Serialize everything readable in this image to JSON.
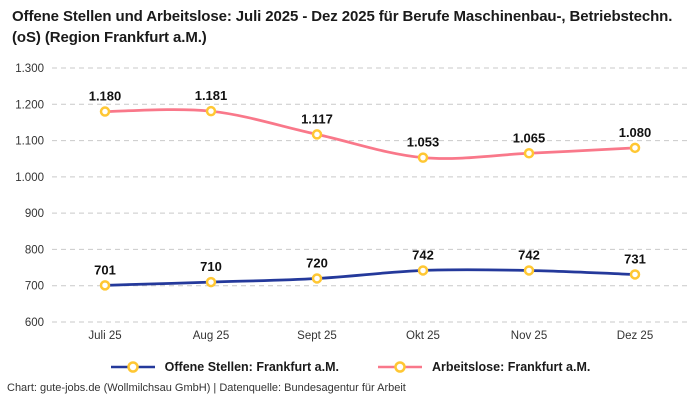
{
  "title": "Offene Stellen und Arbeitslose: Juli 2025 - Dez 2025 für Berufe Maschinenbau-, Betriebstechn.(oS) (Region Frankfurt a.M.)",
  "footer": "Chart: gute-jobs.de (Wollmilchsau GmbH) | Datenquelle: Bundesagentur für Arbeit",
  "colors": {
    "background": "#ffffff",
    "title_text": "#1a1a1a",
    "axis_text": "#333333",
    "data_label_text": "#111111",
    "grid": "#c9c9c9",
    "marker_stroke": "#ffc733",
    "marker_fill": "#ffffff"
  },
  "chart_data": {
    "type": "line",
    "title": "Offene Stellen und Arbeitslose: Juli 2025 - Dez 2025 für Berufe Maschinenbau-, Betriebstechn.(oS) (Region Frankfurt a.M.)",
    "categories": [
      "Juli 25",
      "Aug 25",
      "Sept 25",
      "Okt 25",
      "Nov 25",
      "Dez 25"
    ],
    "series": [
      {
        "name": "Offene Stellen: Frankfurt a.M.",
        "values": [
          701,
          710,
          720,
          742,
          742,
          731
        ],
        "labels": [
          "701",
          "710",
          "720",
          "742",
          "742",
          "731"
        ],
        "color": "#24399b"
      },
      {
        "name": "Arbeitslose: Frankfurt a.M.",
        "values": [
          1180,
          1181,
          1117,
          1053,
          1065,
          1080
        ],
        "labels": [
          "1.180",
          "1.181",
          "1.117",
          "1.053",
          "1.065",
          "1.080"
        ],
        "color": "#f9788a"
      }
    ],
    "xlabel": "",
    "ylabel": "",
    "ylim": [
      600,
      1300
    ],
    "yticks": [
      {
        "value": 600,
        "label": "600"
      },
      {
        "value": 700,
        "label": "700"
      },
      {
        "value": 800,
        "label": "800"
      },
      {
        "value": 900,
        "label": "900"
      },
      {
        "value": 1000,
        "label": "1.000"
      },
      {
        "value": 1100,
        "label": "1.100"
      },
      {
        "value": 1200,
        "label": "1.200"
      },
      {
        "value": 1300,
        "label": "1.300"
      }
    ],
    "grid": "horizontal-dashed",
    "legend_position": "bottom",
    "marker_style": "circle-open-yellow"
  }
}
